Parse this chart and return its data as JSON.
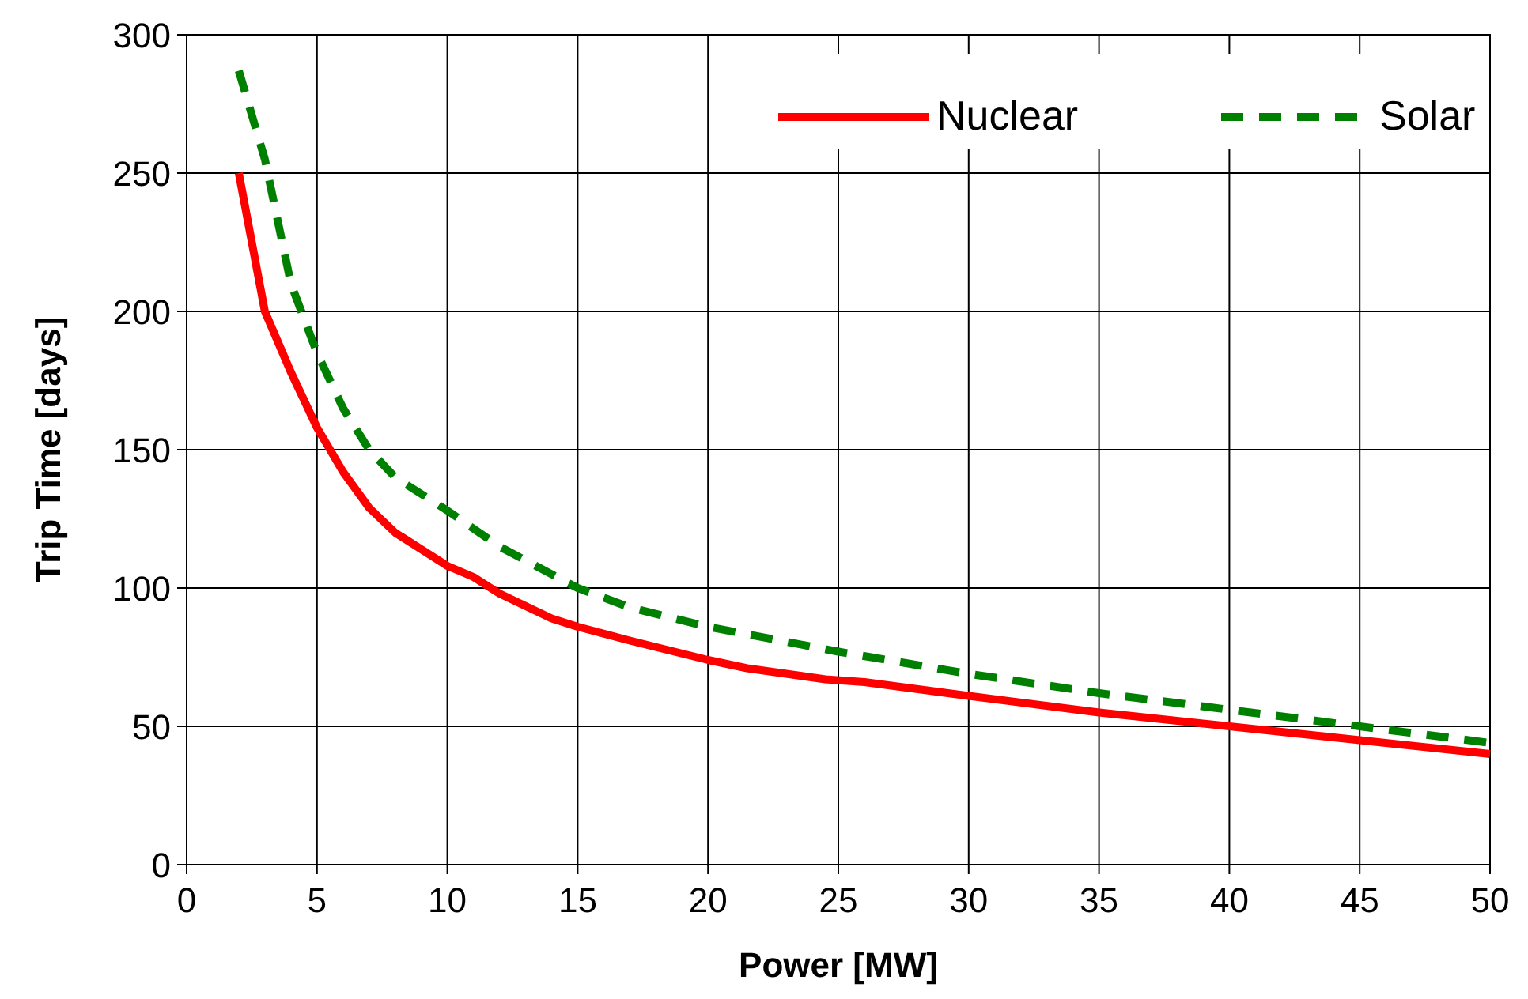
{
  "chart_data": {
    "type": "line",
    "xlabel": "Power [MW]",
    "ylabel": "Trip Time [days]",
    "xlim": [
      0,
      50
    ],
    "xticks": [
      0,
      5,
      10,
      15,
      20,
      25,
      30,
      35,
      40,
      45,
      50
    ],
    "ylim": [
      0,
      300
    ],
    "yticks": [
      0,
      50,
      100,
      150,
      200,
      250,
      300
    ],
    "grid": true,
    "legend": "top right",
    "series": [
      {
        "name": "Nuclear",
        "color": "#ff0000",
        "line_style": "solid",
        "x": [
          2,
          3,
          4,
          5,
          6,
          7,
          8,
          10,
          11,
          12,
          14,
          15,
          17,
          20,
          21.5,
          23,
          24.5,
          26,
          30,
          35,
          40,
          45,
          50
        ],
        "values": [
          250,
          200,
          178,
          158,
          142,
          129,
          120,
          108,
          104,
          98,
          89,
          86,
          81,
          74,
          71,
          69,
          67,
          66,
          61,
          55,
          50,
          45,
          40
        ]
      },
      {
        "name": "Solar",
        "color": "#008000",
        "line_style": "dashed",
        "x": [
          2,
          3,
          4,
          5,
          6,
          7,
          8,
          10,
          12,
          15,
          17,
          20,
          25,
          30,
          35,
          40,
          45,
          50
        ],
        "values": [
          287,
          255,
          210,
          185,
          165,
          150,
          140,
          128,
          115,
          100,
          93,
          86,
          77,
          69,
          62,
          56,
          50,
          44
        ]
      }
    ]
  }
}
